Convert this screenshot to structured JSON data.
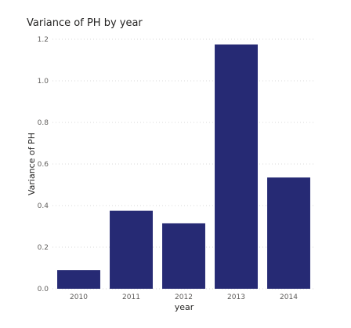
{
  "chart_data": {
    "type": "bar",
    "title": "Variance of PH by year",
    "xlabel": "year",
    "ylabel": "Variance of PH",
    "categories": [
      "2010",
      "2011",
      "2012",
      "2013",
      "2014"
    ],
    "values": [
      0.09,
      0.375,
      0.315,
      1.175,
      0.535
    ],
    "ylim": [
      0,
      1.2
    ],
    "yticks": [
      "0.0",
      "0.2",
      "0.4",
      "0.6",
      "0.8",
      "1.0",
      "1.2"
    ],
    "grid": true,
    "legend": "none",
    "colors": {
      "bar": "#262A74",
      "gridline": "#d9d9d9",
      "text": "#605e5c",
      "title": "#252423"
    }
  }
}
